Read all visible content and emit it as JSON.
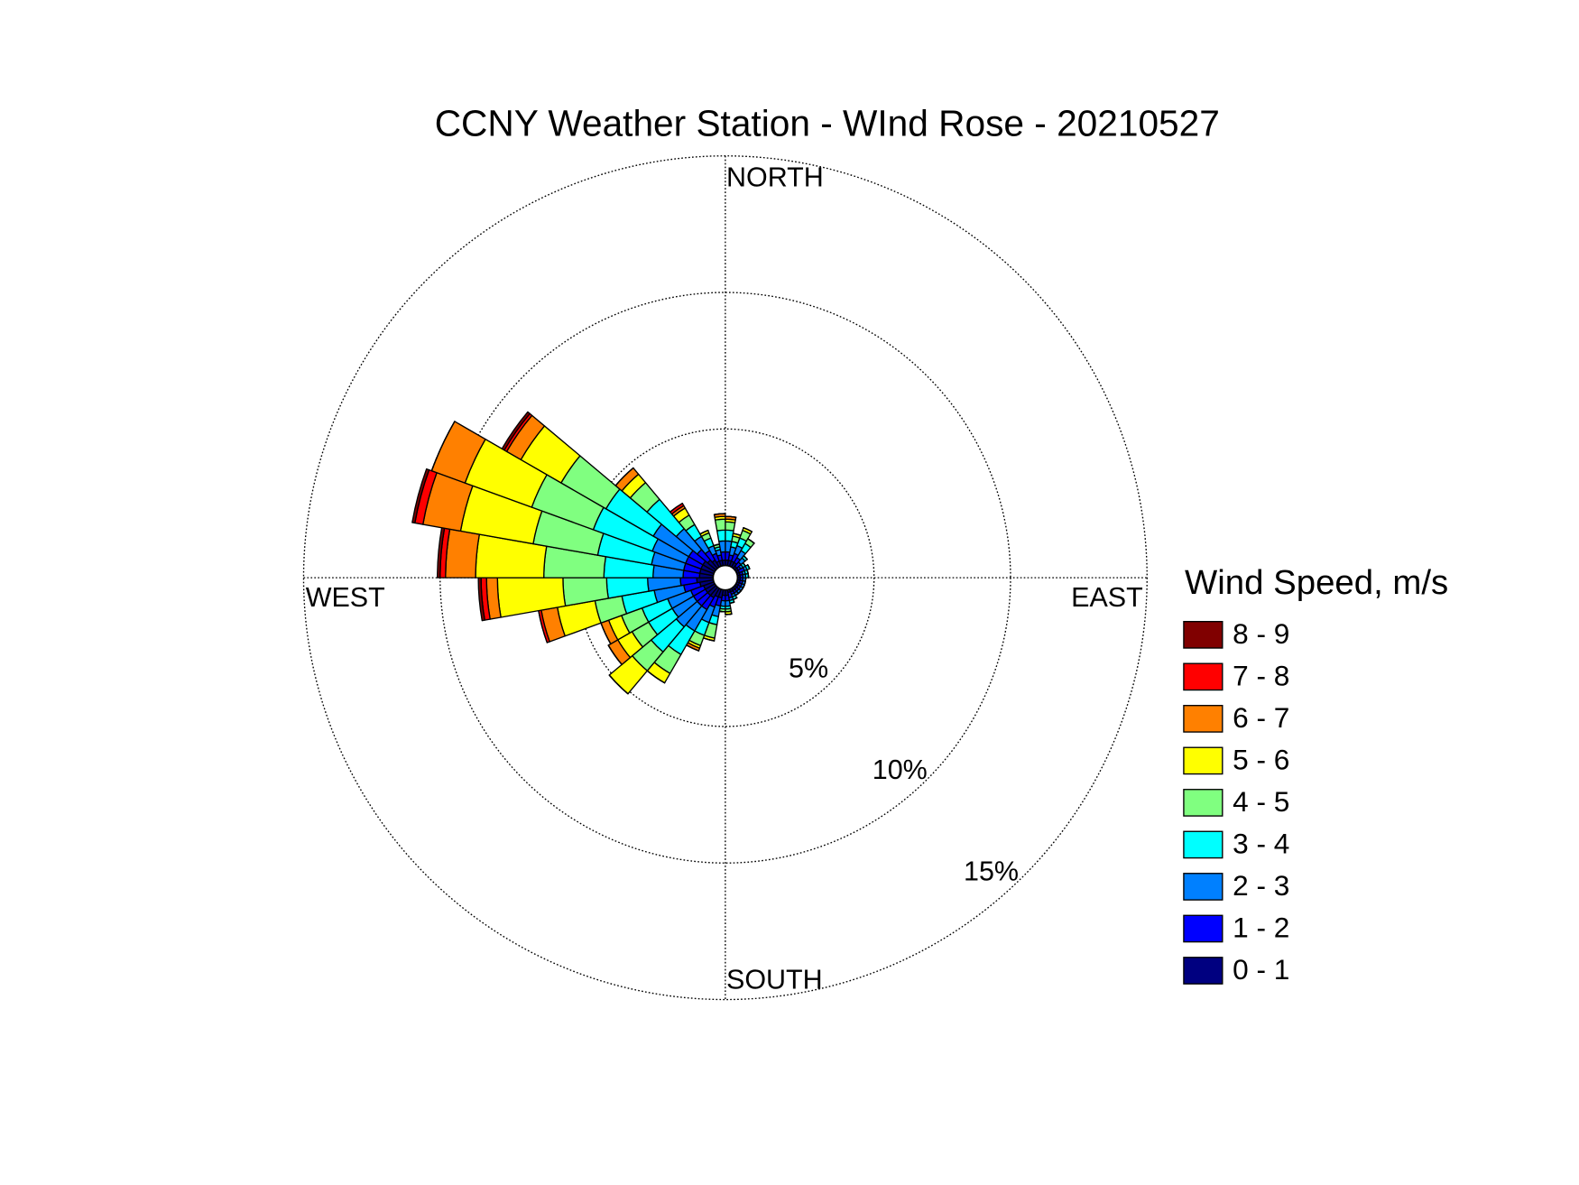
{
  "chart_data": {
    "type": "windrose",
    "title": "CCNY Weather Station - WInd Rose - 20210527",
    "direction_labels": [
      "NORTH",
      "EAST",
      "SOUTH",
      "WEST"
    ],
    "legend_title": "Wind Speed, m/s",
    "directions": [
      5,
      15,
      25,
      35,
      45,
      55,
      65,
      75,
      85,
      95,
      105,
      115,
      125,
      135,
      145,
      155,
      165,
      175,
      185,
      195,
      205,
      215,
      225,
      235,
      245,
      255,
      265,
      275,
      285,
      295,
      305,
      315,
      325,
      335,
      345,
      355
    ],
    "rlim": [
      0,
      15
    ],
    "rticks": [
      {
        "value": 5,
        "label": "5%"
      },
      {
        "value": 10,
        "label": "10%"
      },
      {
        "value": 15,
        "label": "15%"
      }
    ],
    "grid": true,
    "series": [
      {
        "name": "0 - 1",
        "color": "#000080",
        "values": [
          0.2,
          0.2,
          0.2,
          0.2,
          0.1,
          0.1,
          0.1,
          0.1,
          0.1,
          0.1,
          0.1,
          0.1,
          0.1,
          0.1,
          0.1,
          0.1,
          0.1,
          0.2,
          0.2,
          0.3,
          0.3,
          0.4,
          0.4,
          0.4,
          0.4,
          0.5,
          0.6,
          0.5,
          0.5,
          0.5,
          0.5,
          0.4,
          0.3,
          0.2,
          0.2,
          0.2
        ]
      },
      {
        "name": "1 - 2",
        "color": "#0000ff",
        "values": [
          0.3,
          0.2,
          0.3,
          0.2,
          0.2,
          0.1,
          0.2,
          0.1,
          0.1,
          0.1,
          0.1,
          0.1,
          0.1,
          0.1,
          0.1,
          0.1,
          0.2,
          0.2,
          0.2,
          0.3,
          0.4,
          0.5,
          0.5,
          0.5,
          0.5,
          0.6,
          0.6,
          0.6,
          0.6,
          0.6,
          0.6,
          0.5,
          0.4,
          0.3,
          0.2,
          0.3
        ]
      },
      {
        "name": "2 - 3",
        "color": "#0080ff",
        "values": [
          0.4,
          0.3,
          0.3,
          0.3,
          0.2,
          0.1,
          0.1,
          0.1,
          0.1,
          0.1,
          0.1,
          0.1,
          0.1,
          0.1,
          0.1,
          0.1,
          0.1,
          0.2,
          0.2,
          0.4,
          0.6,
          0.9,
          1.0,
          0.9,
          0.9,
          1.1,
          1.2,
          1.1,
          1.2,
          1.3,
          1.5,
          1.0,
          0.6,
          0.3,
          0.2,
          0.4
        ]
      },
      {
        "name": "3 - 4",
        "color": "#00ffff",
        "values": [
          0.4,
          0.2,
          0.3,
          0.3,
          0.1,
          0.1,
          0.1,
          0.1,
          0.1,
          0,
          0,
          0,
          0,
          0,
          0,
          0.1,
          0.1,
          0.1,
          0.1,
          0.3,
          0.5,
          1.0,
          1.2,
          1.0,
          1.0,
          1.2,
          1.5,
          1.8,
          2.0,
          2.3,
          2.0,
          1.4,
          0.5,
          0.3,
          0.1,
          0.4
        ]
      },
      {
        "name": "4 - 5",
        "color": "#80ff80",
        "values": [
          0.3,
          0.2,
          0.3,
          0.2,
          0,
          0,
          0,
          0,
          0,
          0,
          0,
          0,
          0,
          0,
          0,
          0,
          0,
          0.1,
          0.1,
          0.5,
          0.4,
          0.8,
          0.9,
          0.7,
          0.8,
          1.0,
          1.6,
          2.2,
          2.4,
          2.4,
          1.9,
          0.8,
          0.4,
          0.2,
          0.1,
          0.4
        ]
      },
      {
        "name": "5 - 6",
        "color": "#ffff00",
        "values": [
          0.1,
          0.1,
          0.1,
          0,
          0,
          0,
          0,
          0,
          0,
          0,
          0,
          0,
          0,
          0,
          0,
          0,
          0,
          0.1,
          0,
          0.1,
          0.1,
          0.4,
          1.1,
          0.6,
          0.5,
          1.4,
          2.4,
          2.5,
          2.7,
          2.6,
          1.7,
          0.4,
          0.3,
          0.1,
          0,
          0.1
        ]
      },
      {
        "name": "6 - 7",
        "color": "#ff8000",
        "values": [
          0.1,
          0,
          0,
          0,
          0,
          0,
          0,
          0,
          0,
          0,
          0,
          0,
          0,
          0,
          0,
          0,
          0,
          0,
          0,
          0,
          0.1,
          0,
          0,
          0.4,
          0.3,
          0.6,
          0.4,
          1.1,
          1.4,
          1.3,
          0.6,
          0.3,
          0.1,
          0,
          0,
          0.1
        ]
      },
      {
        "name": "7 - 8",
        "color": "#ff0000",
        "values": [
          0,
          0,
          0,
          0,
          0,
          0,
          0,
          0,
          0,
          0,
          0,
          0,
          0,
          0,
          0,
          0,
          0,
          0,
          0,
          0,
          0,
          0,
          0,
          0,
          0,
          0.1,
          0.2,
          0.2,
          0.3,
          0,
          0.1,
          0,
          0.1,
          0,
          0,
          0
        ]
      },
      {
        "name": "8 - 9",
        "color": "#800000",
        "values": [
          0,
          0,
          0,
          0,
          0,
          0,
          0,
          0,
          0,
          0,
          0,
          0,
          0,
          0,
          0,
          0,
          0,
          0,
          0,
          0,
          0,
          0,
          0,
          0,
          0,
          0,
          0.1,
          0.1,
          0.1,
          0,
          0.1,
          0,
          0,
          0,
          0,
          0
        ]
      }
    ]
  }
}
